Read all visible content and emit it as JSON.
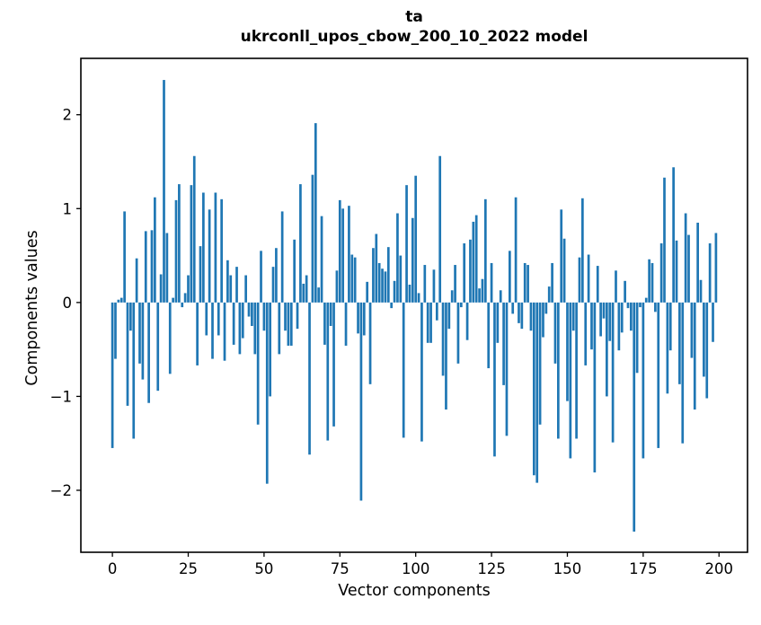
{
  "figure": {
    "title_line1": "ta",
    "title_line2": "ukrconll_upos_cbow_200_10_2022 model"
  },
  "chart_data": {
    "type": "bar",
    "title": "ta",
    "subtitle": "ukrconll_upos_cbow_200_10_2022 model",
    "xlabel": "Vector components",
    "ylabel": "Components values",
    "bar_color": "#1f77b4",
    "axis_color": "#000000",
    "grid": false,
    "legend": null,
    "x_note": "x = vector component index 0..199",
    "xlim": [
      -10.4,
      209.4
    ],
    "ylim": [
      -2.66,
      2.6
    ],
    "x_ticks": [
      0,
      25,
      50,
      75,
      100,
      125,
      150,
      175,
      200
    ],
    "y_ticks": [
      -2,
      -1,
      0,
      1,
      2
    ],
    "bar_width_units": 0.8,
    "values": [
      -1.55,
      -0.6,
      0.03,
      0.05,
      0.97,
      -1.1,
      -0.3,
      -1.45,
      0.47,
      -0.65,
      -0.82,
      0.76,
      -1.07,
      0.77,
      1.12,
      -0.94,
      0.3,
      2.37,
      0.74,
      -0.76,
      0.05,
      1.09,
      1.26,
      -0.05,
      0.1,
      0.29,
      1.25,
      1.56,
      -0.67,
      0.6,
      1.17,
      -0.35,
      0.99,
      -0.6,
      1.17,
      -0.35,
      1.1,
      -0.62,
      0.45,
      0.29,
      -0.45,
      0.38,
      -0.55,
      -0.38,
      0.29,
      -0.15,
      -0.25,
      -0.55,
      -1.3,
      0.55,
      -0.3,
      -1.93,
      -1.0,
      0.38,
      0.58,
      -0.55,
      0.97,
      -0.3,
      -0.46,
      -0.46,
      0.67,
      -0.28,
      1.26,
      0.2,
      0.29,
      -1.62,
      1.36,
      1.91,
      0.16,
      0.92,
      -0.45,
      -1.47,
      -0.25,
      -1.32,
      0.34,
      1.09,
      1.0,
      -0.46,
      1.03,
      0.51,
      0.48,
      -0.33,
      -2.11,
      -0.35,
      0.22,
      -0.87,
      0.58,
      0.73,
      0.42,
      0.36,
      0.33,
      0.59,
      -0.06,
      0.23,
      0.95,
      0.5,
      -1.44,
      1.25,
      0.19,
      0.9,
      1.35,
      0.1,
      -1.48,
      0.4,
      -0.43,
      -0.43,
      0.35,
      -0.19,
      1.56,
      -0.78,
      -1.14,
      -0.28,
      0.13,
      0.4,
      -0.65,
      -0.05,
      0.63,
      -0.4,
      0.67,
      0.86,
      0.93,
      0.15,
      0.25,
      1.1,
      -0.7,
      0.42,
      -1.64,
      -0.43,
      0.13,
      -0.88,
      -1.42,
      0.55,
      -0.12,
      1.12,
      -0.22,
      -0.28,
      0.42,
      0.4,
      -0.3,
      -1.84,
      -1.92,
      -1.3,
      -0.37,
      -0.12,
      0.17,
      0.42,
      -0.65,
      -1.45,
      0.99,
      0.68,
      -1.05,
      -1.66,
      -0.3,
      -1.45,
      0.48,
      1.11,
      -0.67,
      0.51,
      -0.5,
      -1.81,
      0.39,
      -0.36,
      -0.17,
      -1.0,
      -0.41,
      -1.49,
      0.34,
      -0.51,
      -0.32,
      0.23,
      -0.06,
      -0.3,
      -2.44,
      -0.75,
      -0.05,
      -1.66,
      0.05,
      0.46,
      0.42,
      -0.1,
      -1.55,
      0.63,
      1.33,
      -0.97,
      -0.51,
      1.44,
      0.66,
      -0.87,
      -1.5,
      0.95,
      0.72,
      -0.59,
      -1.14,
      0.85,
      0.24,
      -0.79,
      -1.02,
      0.63,
      -0.42,
      0.74
    ]
  }
}
